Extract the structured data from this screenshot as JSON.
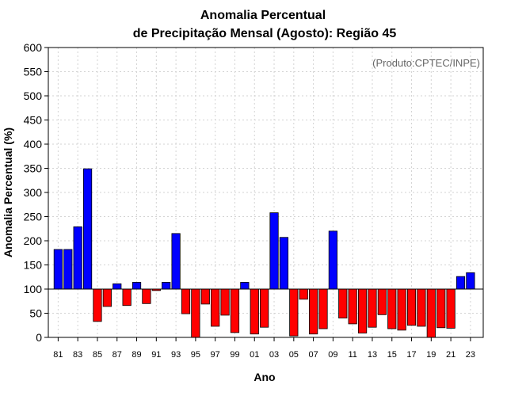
{
  "chart_data": {
    "type": "bar",
    "title_line1": "Anomalia Percentual",
    "title_line2": "de Precipitação Mensal (Agosto): Região 45",
    "credit": "(Produto:CPTEC/INPE)",
    "xlabel": "Ano",
    "ylabel": "Anomalia Percentual (%)",
    "ylim": [
      0,
      600
    ],
    "yticks": [
      0,
      50,
      100,
      150,
      200,
      250,
      300,
      350,
      400,
      450,
      500,
      550,
      600
    ],
    "baseline": 100,
    "grid": true,
    "colors": {
      "above": "#0000ff",
      "below": "#ff0000",
      "outline": "#000000",
      "grid": "#d3d3d3"
    },
    "categories": [
      "81",
      "82",
      "83",
      "84",
      "85",
      "86",
      "87",
      "88",
      "89",
      "90",
      "91",
      "92",
      "93",
      "94",
      "95",
      "96",
      "97",
      "98",
      "99",
      "00",
      "01",
      "02",
      "03",
      "04",
      "05",
      "06",
      "07",
      "08",
      "09",
      "10",
      "11",
      "12",
      "13",
      "14",
      "15",
      "16",
      "17",
      "18",
      "19",
      "20",
      "21",
      "22",
      "23"
    ],
    "tick_labels": [
      "81",
      "83",
      "85",
      "87",
      "89",
      "91",
      "93",
      "95",
      "97",
      "99",
      "01",
      "03",
      "05",
      "07",
      "09",
      "11",
      "13",
      "15",
      "17",
      "19",
      "21",
      "23"
    ],
    "values": [
      182,
      182,
      229,
      349,
      33,
      64,
      111,
      66,
      114,
      70,
      97,
      114,
      215,
      49,
      0,
      69,
      23,
      46,
      10,
      114,
      7,
      21,
      258,
      207,
      3,
      79,
      7,
      18,
      220,
      40,
      28,
      9,
      21,
      47,
      18,
      15,
      25,
      23,
      0,
      20,
      19,
      126,
      134
    ]
  }
}
